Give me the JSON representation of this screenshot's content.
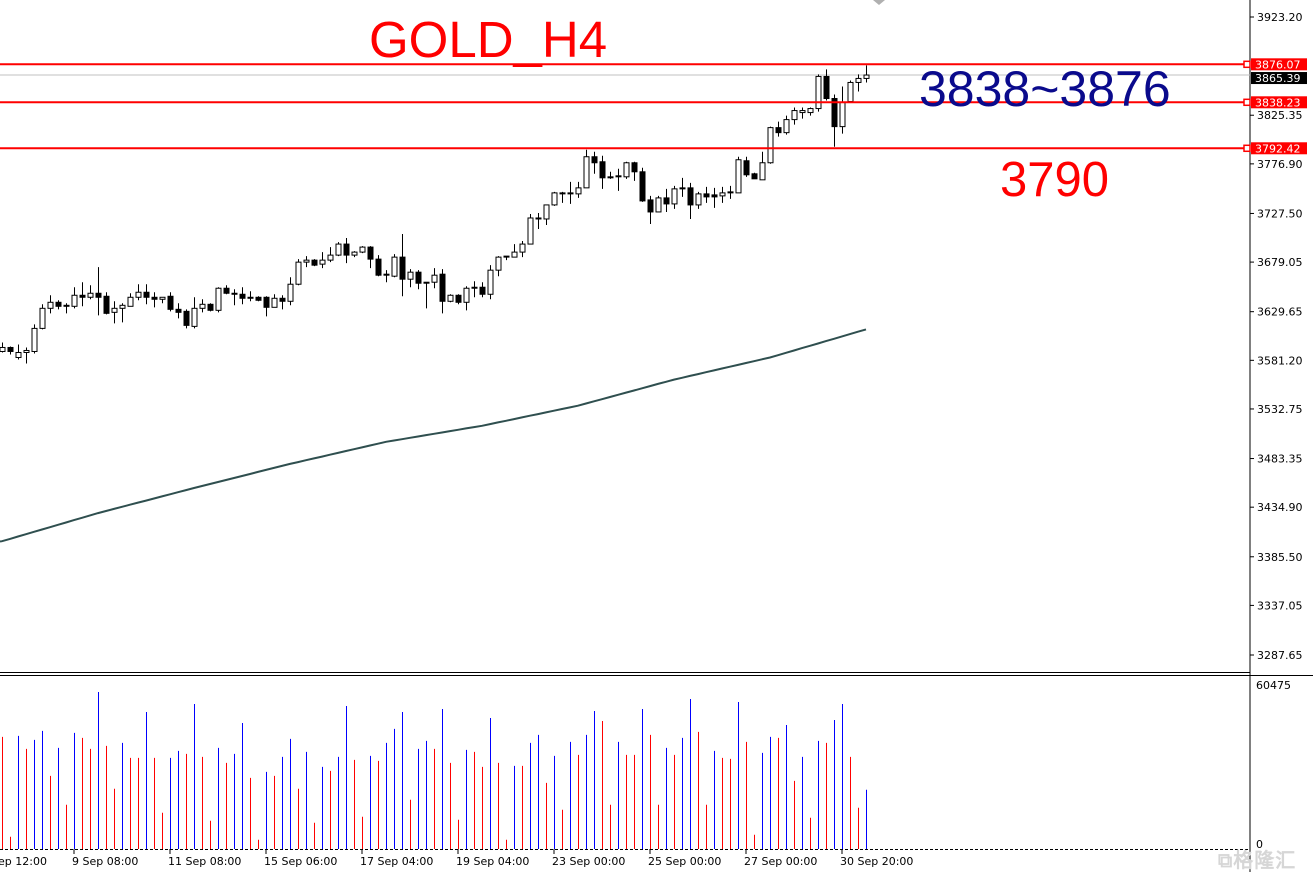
{
  "annotations": {
    "title": "GOLD_H4",
    "range_label": "3838~3876",
    "level_label": "3790"
  },
  "watermark": "格隆汇",
  "colors": {
    "level_line": "#ff0000",
    "bull_body": "#ffffff",
    "bear_body": "#000000",
    "candle_outline": "#000000",
    "ma_line": "#2f4f4f",
    "volume_up": "#0000ff",
    "volume_down": "#ff0000",
    "bid_line": "#c0c0c0"
  },
  "chart_data": [
    {
      "type": "candlestick",
      "title": "GOLD_H4",
      "ylim": [
        3287.65,
        3923.2
      ],
      "grid": false,
      "y_ticks": [
        "3923.20",
        "3825.35",
        "3776.90",
        "3727.50",
        "3679.05",
        "3629.65",
        "3581.20",
        "3532.75",
        "3483.35",
        "3434.90",
        "3385.50",
        "3337.05",
        "3287.65"
      ],
      "x_ticks": [
        {
          "bar": -3,
          "label": "ep 12:00"
        },
        {
          "bar": 9,
          "label": "9 Sep 08:00"
        },
        {
          "bar": 21,
          "label": "11 Sep 08:00"
        },
        {
          "bar": 33,
          "label": "15 Sep 06:00"
        },
        {
          "bar": 45,
          "label": "17 Sep 04:00"
        },
        {
          "bar": 57,
          "label": "19 Sep 04:00"
        },
        {
          "bar": 69,
          "label": "23 Sep 00:00"
        },
        {
          "bar": 81,
          "label": "25 Sep 00:00"
        },
        {
          "bar": 93,
          "label": "27 Sep 00:00"
        },
        {
          "bar": 105,
          "label": "30 Sep 20:00"
        }
      ],
      "horizontal_levels": [
        {
          "price": 3876.07,
          "label": "3876.07"
        },
        {
          "price": 3838.23,
          "label": "3838.23"
        },
        {
          "price": 3792.42,
          "label": "3792.42"
        }
      ],
      "current_price": {
        "price": 3865.39,
        "label": "3865.39"
      },
      "ohlc": [
        [
          3590,
          3599,
          3589,
          3594
        ],
        [
          3594,
          3595,
          3587,
          3590
        ],
        [
          3584,
          3597,
          3582,
          3589
        ],
        [
          3589,
          3594,
          3578,
          3591
        ],
        [
          3590,
          3617,
          3588,
          3613
        ],
        [
          3613,
          3637,
          3612,
          3633
        ],
        [
          3633,
          3646,
          3628,
          3639
        ],
        [
          3639,
          3641,
          3632,
          3635
        ],
        [
          3636,
          3638,
          3628,
          3635
        ],
        [
          3635,
          3654,
          3633,
          3646
        ],
        [
          3646,
          3659,
          3635,
          3644
        ],
        [
          3644,
          3656,
          3642,
          3648
        ],
        [
          3648,
          3674,
          3626,
          3644
        ],
        [
          3645,
          3649,
          3627,
          3628
        ],
        [
          3629,
          3640,
          3618,
          3633
        ],
        [
          3633,
          3638,
          3619,
          3636
        ],
        [
          3635,
          3648,
          3635,
          3644
        ],
        [
          3644,
          3657,
          3641,
          3649
        ],
        [
          3649,
          3657,
          3637,
          3644
        ],
        [
          3644,
          3649,
          3634,
          3642
        ],
        [
          3642,
          3644,
          3638,
          3644
        ],
        [
          3645,
          3649,
          3630,
          3632
        ],
        [
          3632,
          3638,
          3623,
          3629
        ],
        [
          3630,
          3632,
          3613,
          3616
        ],
        [
          3615,
          3644,
          3613,
          3633
        ],
        [
          3633,
          3642,
          3629,
          3637
        ],
        [
          3637,
          3638,
          3630,
          3631
        ],
        [
          3631,
          3654,
          3629,
          3653
        ],
        [
          3653,
          3656,
          3647,
          3648
        ],
        [
          3648,
          3652,
          3636,
          3647
        ],
        [
          3647,
          3654,
          3637,
          3643
        ],
        [
          3644,
          3650,
          3640,
          3643
        ],
        [
          3644,
          3645,
          3640,
          3641
        ],
        [
          3644,
          3645,
          3625,
          3634
        ],
        [
          3634,
          3647,
          3634,
          3643
        ],
        [
          3643,
          3646,
          3632,
          3640
        ],
        [
          3640,
          3664,
          3636,
          3657
        ],
        [
          3657,
          3682,
          3656,
          3679
        ],
        [
          3679,
          3685,
          3674,
          3681
        ],
        [
          3681,
          3682,
          3675,
          3676
        ],
        [
          3677,
          3689,
          3673,
          3681
        ],
        [
          3681,
          3694,
          3679,
          3686
        ],
        [
          3686,
          3699,
          3685,
          3697
        ],
        [
          3697,
          3703,
          3678,
          3686
        ],
        [
          3686,
          3690,
          3684,
          3689
        ],
        [
          3689,
          3695,
          3688,
          3694
        ],
        [
          3694,
          3695,
          3673,
          3682
        ],
        [
          3682,
          3686,
          3665,
          3666
        ],
        [
          3667,
          3671,
          3659,
          3666
        ],
        [
          3665,
          3687,
          3664,
          3684
        ],
        [
          3684,
          3707,
          3645,
          3662
        ],
        [
          3662,
          3672,
          3654,
          3669
        ],
        [
          3669,
          3671,
          3652,
          3658
        ],
        [
          3659,
          3659,
          3633,
          3658
        ],
        [
          3659,
          3673,
          3653,
          3666
        ],
        [
          3667,
          3672,
          3628,
          3640
        ],
        [
          3640,
          3647,
          3639,
          3646
        ],
        [
          3646,
          3647,
          3637,
          3639
        ],
        [
          3639,
          3655,
          3631,
          3653
        ],
        [
          3653,
          3660,
          3644,
          3654
        ],
        [
          3654,
          3659,
          3644,
          3647
        ],
        [
          3647,
          3676,
          3642,
          3671
        ],
        [
          3671,
          3685,
          3665,
          3684
        ],
        [
          3684,
          3685,
          3681,
          3685
        ],
        [
          3684,
          3697,
          3684,
          3689
        ],
        [
          3689,
          3700,
          3684,
          3697
        ],
        [
          3697,
          3727,
          3697,
          3723
        ],
        [
          3723,
          3728,
          3712,
          3722
        ],
        [
          3722,
          3736,
          3716,
          3736
        ],
        [
          3736,
          3749,
          3735,
          3748
        ],
        [
          3748,
          3749,
          3738,
          3748
        ],
        [
          3747,
          3759,
          3737,
          3748
        ],
        [
          3747,
          3759,
          3743,
          3753
        ],
        [
          3753,
          3791,
          3753,
          3784
        ],
        [
          3784,
          3789,
          3767,
          3778
        ],
        [
          3779,
          3785,
          3752,
          3763
        ],
        [
          3764,
          3769,
          3762,
          3763
        ],
        [
          3764,
          3772,
          3750,
          3765
        ],
        [
          3764,
          3779,
          3762,
          3778
        ],
        [
          3778,
          3779,
          3760,
          3769
        ],
        [
          3769,
          3773,
          3739,
          3740
        ],
        [
          3741,
          3745,
          3717,
          3729
        ],
        [
          3729,
          3745,
          3729,
          3743
        ],
        [
          3743,
          3752,
          3729,
          3737
        ],
        [
          3737,
          3755,
          3732,
          3752
        ],
        [
          3752,
          3763,
          3744,
          3753
        ],
        [
          3753,
          3758,
          3722,
          3736
        ],
        [
          3736,
          3749,
          3732,
          3747
        ],
        [
          3747,
          3754,
          3738,
          3744
        ],
        [
          3746,
          3753,
          3733,
          3744
        ],
        [
          3745,
          3754,
          3738,
          3748
        ],
        [
          3748,
          3755,
          3742,
          3749
        ],
        [
          3748,
          3784,
          3748,
          3781
        ],
        [
          3780,
          3784,
          3764,
          3766
        ],
        [
          3767,
          3768,
          3762,
          3762
        ],
        [
          3761,
          3789,
          3761,
          3778
        ],
        [
          3778,
          3814,
          3777,
          3813
        ],
        [
          3813,
          3819,
          3804,
          3808
        ],
        [
          3808,
          3825,
          3806,
          3821
        ],
        [
          3821,
          3833,
          3816,
          3830
        ],
        [
          3828,
          3833,
          3822,
          3830
        ],
        [
          3828,
          3833,
          3825,
          3832
        ],
        [
          3832,
          3866,
          3829,
          3864
        ],
        [
          3864,
          3871,
          3840,
          3842
        ],
        [
          3842,
          3846,
          3794,
          3814
        ],
        [
          3814,
          3854,
          3807,
          3838
        ],
        [
          3839,
          3860,
          3839,
          3858
        ],
        [
          3858,
          3866,
          3849,
          3862
        ],
        [
          3862,
          3875,
          3858,
          3865.39
        ]
      ],
      "moving_average": {
        "bars": [
          0,
          12,
          24,
          36,
          48,
          60,
          72,
          84,
          96,
          108
        ],
        "values": [
          3401,
          3429,
          3454,
          3478,
          3500,
          3516,
          3536,
          3562,
          3584,
          3612
        ]
      }
    },
    {
      "type": "bar",
      "ylim": [
        0,
        60475
      ],
      "y_ticks": [
        "60475",
        "0"
      ],
      "volumes": [
        41080,
        4510,
        41446,
        36692,
        39983,
        43275,
        26818,
        37058,
        16213,
        42543,
        40715,
        36692,
        57537,
        37789,
        22064,
        38886,
        33401,
        33401,
        50223,
        33401,
        13287,
        33401,
        35961,
        34863,
        53148,
        33766,
        10362,
        37058,
        31572,
        34863,
        46200,
        26087,
        3413,
        28281,
        26818,
        33766,
        40349,
        22064,
        35595,
        9630,
        30109,
        28647,
        33766,
        52417,
        32669,
        11824,
        34132,
        32304,
        38886,
        44006,
        50223,
        18041,
        36692,
        39618,
        36692,
        51320,
        31572,
        10727,
        36326,
        35595,
        30109,
        48029,
        31572,
        3413,
        30475,
        30475,
        38886,
        41812,
        24258,
        34132,
        14384,
        39252,
        34498,
        41812,
        50589,
        46932,
        16213,
        39252,
        34498,
        34498,
        51320,
        41812,
        16213,
        37058,
        34498,
        40715,
        54977,
        42909,
        16213,
        35961,
        33401,
        33035,
        53880,
        39252,
        5242,
        35229,
        41080,
        40715,
        45469,
        24990,
        33766,
        11459,
        39618,
        38886,
        47297,
        53148,
        33766,
        15116,
        21698
      ],
      "direction": "rrbrbbrbrbrrbrrbrrbrrbbrbrrbrbbrrbrbbrbrbrbbrrbrbbbrbbrbrrbrrbrrbrbbrbrbrbbrrbrrbrrbrbbrrbrrbrrbbrbrbrbrbbrrb"
    }
  ]
}
